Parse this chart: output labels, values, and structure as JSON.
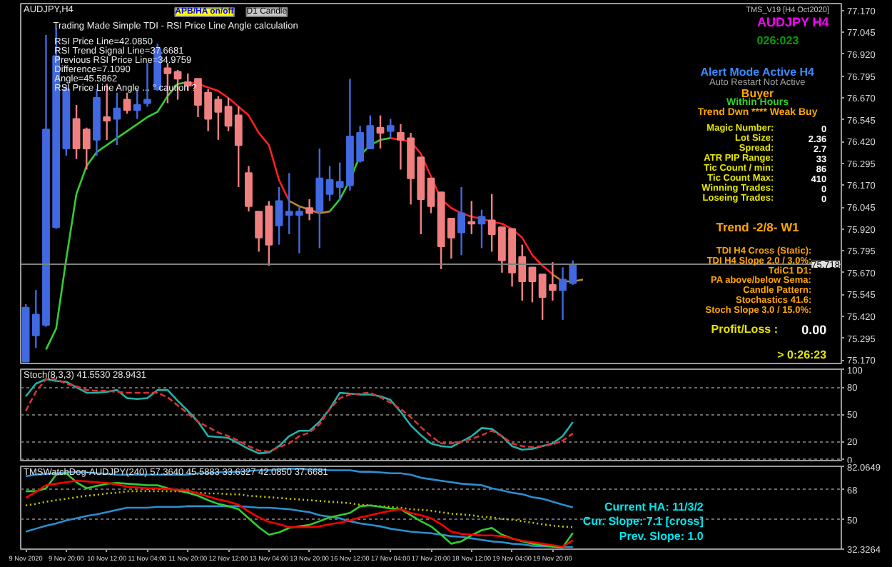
{
  "chart_data": [
    {
      "type": "candlestick",
      "title": "AUDJPY,H4",
      "categories": [
        null,
        null,
        null,
        null,
        null,
        null,
        null,
        null,
        null,
        null,
        null,
        null,
        null,
        null,
        null,
        null,
        null,
        null,
        null,
        null,
        null,
        null,
        null,
        null,
        null,
        null,
        null,
        null,
        null,
        null,
        null,
        null,
        null,
        null,
        null,
        null,
        null,
        null,
        null,
        null,
        null,
        null,
        null,
        null,
        null,
        null,
        null,
        null,
        null,
        null,
        null,
        null,
        null,
        null,
        null,
        null,
        null,
        null,
        null,
        null,
        null,
        null,
        null,
        null,
        null,
        null,
        null,
        null,
        null,
        null,
        null,
        null,
        null,
        null,
        null,
        null,
        null,
        null,
        null,
        null,
        null
      ],
      "ohlc": [
        [
          75.16,
          75.49,
          75.16,
          75.47
        ],
        [
          75.31,
          75.57,
          75.24,
          75.43
        ],
        [
          75.37,
          77.03,
          75.36,
          76.49
        ],
        [
          75.93,
          77.07,
          75.92,
          76.91
        ],
        [
          76.38,
          76.74,
          76.34,
          76.72
        ],
        [
          76.55,
          76.63,
          76.32,
          76.38
        ],
        [
          76.49,
          76.5,
          76.26,
          76.38
        ],
        [
          76.43,
          76.72,
          76.34,
          76.67
        ],
        [
          76.56,
          76.75,
          76.43,
          76.54
        ],
        [
          76.55,
          76.7,
          76.4,
          76.61
        ],
        [
          76.66,
          76.7,
          76.58,
          76.6
        ],
        [
          76.6,
          76.72,
          76.55,
          76.63
        ],
        [
          76.64,
          76.87,
          76.62,
          76.66
        ],
        [
          76.72,
          76.98,
          76.71,
          76.95
        ],
        [
          76.84,
          76.87,
          76.64,
          76.81
        ],
        [
          76.82,
          76.83,
          76.66,
          76.78
        ],
        [
          76.76,
          76.81,
          76.71,
          76.74
        ],
        [
          76.78,
          76.78,
          76.56,
          76.63
        ],
        [
          76.7,
          76.72,
          76.48,
          76.55
        ],
        [
          76.66,
          76.68,
          76.43,
          76.59
        ],
        [
          76.62,
          76.67,
          76.48,
          76.51
        ],
        [
          76.57,
          76.62,
          76.16,
          76.4
        ],
        [
          76.24,
          76.28,
          76.02,
          76.05
        ],
        [
          76.02,
          76.02,
          75.79,
          75.87
        ],
        [
          76.05,
          76.08,
          75.71,
          75.83
        ],
        [
          75.94,
          76.16,
          75.83,
          76.08
        ],
        [
          76.0,
          76.24,
          75.89,
          76.02
        ],
        [
          76.0,
          76.05,
          75.78,
          76.02
        ],
        [
          76.04,
          76.09,
          75.97,
          76.01
        ],
        [
          76.02,
          76.38,
          75.81,
          76.21
        ],
        [
          76.12,
          76.28,
          76.08,
          76.2
        ],
        [
          76.16,
          76.3,
          76.08,
          76.19
        ],
        [
          76.17,
          76.78,
          76.14,
          76.45
        ],
        [
          76.31,
          76.51,
          76.3,
          76.47
        ],
        [
          76.38,
          76.57,
          76.38,
          76.51
        ],
        [
          76.5,
          76.57,
          76.38,
          76.47
        ],
        [
          76.48,
          76.55,
          76.44,
          76.51
        ],
        [
          76.47,
          76.52,
          76.26,
          76.43
        ],
        [
          76.44,
          76.47,
          76.06,
          76.21
        ],
        [
          76.33,
          76.33,
          75.89,
          76.09
        ],
        [
          76.21,
          76.21,
          76.01,
          76.05
        ],
        [
          76.13,
          76.13,
          75.69,
          75.82
        ],
        [
          75.98,
          75.98,
          75.75,
          75.87
        ],
        [
          75.9,
          76.16,
          75.77,
          76.01
        ],
        [
          75.96,
          76.08,
          75.89,
          75.95
        ],
        [
          75.95,
          76.03,
          75.81,
          75.99
        ],
        [
          75.97,
          76.12,
          75.79,
          75.89
        ],
        [
          75.93,
          75.93,
          75.67,
          75.74
        ],
        [
          75.92,
          75.92,
          75.59,
          75.67
        ],
        [
          75.76,
          75.83,
          75.51,
          75.62
        ],
        [
          75.7,
          75.7,
          75.5,
          75.62
        ],
        [
          75.66,
          75.66,
          75.4,
          75.53
        ],
        [
          75.6,
          75.73,
          75.51,
          75.57
        ],
        [
          75.57,
          75.7,
          75.4,
          75.63
        ],
        [
          75.61,
          75.74,
          75.6,
          75.718
        ],
        null,
        null,
        null,
        null,
        null,
        null,
        null,
        null,
        null,
        null,
        null,
        null,
        null,
        null,
        null,
        null,
        null,
        null,
        null,
        null,
        null,
        null,
        null,
        null,
        null,
        null
      ],
      "colors": [
        "#4169e1",
        "#4169e1",
        "#4169e1",
        "#4169e1",
        "#4169e1",
        "#f08080",
        "#f08080",
        "#4169e1",
        "#f08080",
        "#4169e1",
        "#f08080",
        "#4169e1",
        "#4169e1",
        "#4169e1",
        "#f08080",
        "#f08080",
        "#f08080",
        "#f08080",
        "#f08080",
        "#f08080",
        "#f08080",
        "#f08080",
        "#f08080",
        "#f08080",
        "#f08080",
        "#4169e1",
        "#4169e1",
        "#4169e1",
        "#f08080",
        "#4169e1",
        "#4169e1",
        "#4169e1",
        "#4169e1",
        "#4169e1",
        "#4169e1",
        "#f08080",
        "#4169e1",
        "#f08080",
        "#f08080",
        "#f08080",
        "#f08080",
        "#f08080",
        "#f08080",
        "#4169e1",
        "#f08080",
        "#4169e1",
        "#f08080",
        "#f08080",
        "#f08080",
        "#f08080",
        "#f08080",
        "#f08080",
        "#f08080",
        "#4169e1",
        "#4169e1",
        null,
        null,
        null,
        null,
        null,
        null,
        null,
        null,
        null,
        null,
        null,
        null,
        null,
        null,
        null,
        null,
        null,
        null,
        null,
        null,
        null,
        null,
        null,
        null,
        null,
        null
      ],
      "series": [
        {
          "type": "line",
          "color": "#32cd32",
          "values": [
            null,
            null,
            75.23,
            75.35,
            75.75,
            76.12,
            76.28,
            76.36,
            76.4,
            76.44,
            76.48,
            76.52,
            76.56,
            76.59,
            76.68,
            76.75,
            76.76,
            null,
            null,
            null,
            null,
            null,
            null,
            null,
            null,
            null,
            null,
            null,
            null,
            null,
            76.02,
            76.09,
            76.2,
            76.34,
            76.4,
            76.43,
            76.44,
            null,
            null,
            null,
            null,
            null,
            null,
            null,
            null,
            null,
            null,
            null,
            null,
            null,
            null,
            null,
            null,
            null,
            null,
            null,
            null,
            null,
            null,
            null,
            null,
            null,
            null,
            null,
            null,
            null,
            null,
            null,
            null,
            null,
            null,
            null,
            null,
            null,
            null,
            null,
            null,
            null,
            null,
            null,
            null
          ]
        },
        {
          "type": "line",
          "color": "#ff2020",
          "values": [
            null,
            null,
            null,
            null,
            null,
            null,
            null,
            null,
            null,
            null,
            null,
            null,
            null,
            null,
            null,
            null,
            76.76,
            76.75,
            76.73,
            76.71,
            76.67,
            76.62,
            76.57,
            76.47,
            76.4,
            76.2,
            76.08,
            null,
            null,
            null,
            null,
            null,
            null,
            null,
            null,
            null,
            76.44,
            76.43,
            76.42,
            76.35,
            76.22,
            76.09,
            76.04,
            76.01,
            75.99,
            75.98,
            75.96,
            75.95,
            75.92,
            75.87,
            75.77,
            75.71,
            75.66,
            null,
            null,
            null,
            null,
            null,
            null,
            null,
            null,
            null,
            null,
            null,
            null,
            null,
            null,
            null,
            null,
            null,
            null,
            null,
            null,
            null,
            null,
            null,
            null,
            null,
            null,
            null,
            null
          ]
        },
        {
          "type": "line",
          "color": "#c8861e",
          "values": [
            null,
            null,
            null,
            null,
            null,
            null,
            null,
            null,
            null,
            null,
            null,
            null,
            null,
            null,
            null,
            null,
            null,
            null,
            null,
            null,
            null,
            null,
            null,
            null,
            null,
            null,
            76.08,
            76.05,
            76.03,
            76.01,
            76.02,
            null,
            null,
            null,
            null,
            null,
            null,
            null,
            null,
            null,
            null,
            null,
            null,
            null,
            null,
            null,
            null,
            null,
            null,
            null,
            null,
            null,
            75.66,
            75.62,
            75.62,
            75.63,
            null,
            null,
            null,
            null,
            null,
            null,
            null,
            null,
            null,
            null,
            null,
            null,
            null,
            null,
            null,
            null,
            null,
            null,
            null,
            null,
            null,
            null,
            null,
            null,
            null
          ]
        }
      ],
      "ylim": [
        75.15,
        77.21
      ],
      "yticks": [
        {
          "value": 77.17,
          "label": "77.170"
        },
        {
          "value": 77.045,
          "label": "77.045"
        },
        {
          "value": 76.92,
          "label": "76.920"
        },
        {
          "value": 76.795,
          "label": "76.795"
        },
        {
          "value": 76.67,
          "label": "76.670"
        },
        {
          "value": 76.545,
          "label": "76.545"
        },
        {
          "value": 76.42,
          "label": "76.420"
        },
        {
          "value": 76.295,
          "label": "76.295"
        },
        {
          "value": 76.17,
          "label": "76.170"
        },
        {
          "value": 76.045,
          "label": "76.045"
        },
        {
          "value": 75.92,
          "label": "75.920"
        },
        {
          "value": 75.795,
          "label": "75.795"
        },
        {
          "value": 75.67,
          "label": "75.670"
        },
        {
          "value": 75.545,
          "label": "75.545"
        },
        {
          "value": 75.42,
          "label": "75.420"
        },
        {
          "value": 75.295,
          "label": "75.295"
        },
        {
          "value": 75.17,
          "label": "75.170"
        }
      ],
      "ref_lines": [
        {
          "axis": "y",
          "value": 75.718,
          "label": "75.718",
          "color": "#808080"
        }
      ],
      "annotations": [
        "Trading Made Simple TDI - RSI Price Line Angle calculation",
        "RSI Price Line=42.0850",
        "RSI Trend Signal Line=37.6681",
        "Previous RSI Price Line=34.9759",
        "Difference=7.1090",
        "Angle=45.5862",
        "RSI Price Line Angle ... ° caution ?",
        "APB/HA on/off",
        "D1 Candle"
      ],
      "tick_labels": "y"
    },
    {
      "type": "line",
      "title": "Stoch(8,3,3) 41.5530 28.9431",
      "categories": [
        null,
        null,
        null,
        null,
        null,
        null,
        null,
        null,
        null,
        null,
        null,
        null,
        null,
        null,
        null,
        null,
        null,
        null,
        null,
        null,
        null,
        null,
        null,
        null,
        null,
        null,
        null,
        null,
        null,
        null,
        null,
        null,
        null,
        null,
        null,
        null,
        null,
        null,
        null,
        null,
        null,
        null,
        null,
        null,
        null,
        null,
        null,
        null,
        null,
        null,
        null,
        null,
        null,
        null,
        null,
        null,
        null,
        null,
        null,
        null,
        null,
        null,
        null,
        null,
        null,
        null,
        null,
        null,
        null,
        null,
        null,
        null,
        null,
        null,
        null,
        null,
        null,
        null,
        null,
        null,
        null
      ],
      "series": [
        {
          "color": "#20b2aa",
          "line_style": "solid",
          "values": [
            70,
            84,
            89,
            87,
            86,
            80,
            74,
            74,
            75,
            77,
            68,
            67,
            68,
            77,
            77,
            65,
            54,
            42,
            26,
            25,
            24,
            18,
            12,
            7,
            8,
            15,
            26,
            32,
            32,
            42,
            56,
            74,
            73,
            72,
            72,
            70,
            66,
            53,
            38,
            27,
            18,
            15,
            14,
            20,
            26,
            35,
            34,
            26,
            15,
            11,
            12,
            15,
            18,
            26,
            41.55,
            null,
            null,
            null,
            null,
            null,
            null,
            null,
            null,
            null,
            null,
            null,
            null,
            null,
            null,
            null,
            null,
            null,
            null,
            null,
            null,
            null,
            null,
            null,
            null,
            null,
            null
          ]
        },
        {
          "color": "#e03030",
          "line_style": "dashed",
          "values": [
            54,
            75,
            89,
            89,
            84,
            81,
            77,
            76,
            76,
            75,
            74,
            74,
            74,
            74,
            69,
            60,
            51,
            42,
            36,
            30,
            26,
            21,
            15,
            10,
            9,
            14,
            18,
            26,
            30,
            39,
            56,
            68,
            72,
            73,
            74,
            69,
            63,
            56,
            47,
            36,
            26,
            18,
            18,
            20,
            23,
            27,
            32,
            26,
            18,
            15,
            14,
            15,
            17,
            21,
            28.94,
            null,
            null,
            null,
            null,
            null,
            null,
            null,
            null,
            null,
            null,
            null,
            null,
            null,
            null,
            null,
            null,
            null,
            null,
            null,
            null,
            null,
            null,
            null,
            null,
            null,
            null
          ]
        }
      ],
      "ylim": [
        -1,
        100
      ],
      "yticks": [
        100,
        80,
        50,
        20,
        0
      ],
      "grid": "y",
      "tick_labels": "y"
    },
    {
      "type": "line",
      "title": "TMSWatchDog-AUDJPY(240) 57.3640 45.5883 33.6327 42.0850 37.6681",
      "categories": [
        "9 Nov 2020",
        null,
        null,
        null,
        "9 Nov 20:00",
        null,
        null,
        null,
        "10 Nov 12:00",
        null,
        null,
        null,
        "11 Nov 04:00",
        null,
        null,
        null,
        "11 Nov 20:00",
        null,
        null,
        null,
        "12 Nov 12:00",
        null,
        null,
        null,
        "13 Nov 04:00",
        null,
        null,
        null,
        "13 Nov 20:00",
        null,
        null,
        null,
        "16 Nov 12:00",
        null,
        null,
        null,
        "17 Nov 04:00",
        null,
        null,
        null,
        "17 Nov 20:00",
        null,
        null,
        null,
        "18 Nov 12:00",
        null,
        null,
        null,
        "19 Nov 04:00",
        null,
        null,
        null,
        "19 Nov 20:00",
        null,
        null,
        null,
        null,
        null,
        null,
        null,
        null,
        null,
        null,
        null,
        null,
        null,
        null,
        null,
        null,
        null,
        null,
        null,
        null,
        null,
        null,
        null,
        null,
        null,
        null,
        null,
        null
      ],
      "series": [
        {
          "color": "#2a8fd0",
          "line_style": "solid",
          "values": [
            76.1,
            77,
            77.5,
            77.9,
            78.4,
            78.8,
            78.4,
            77.9,
            77.5,
            77,
            77,
            77,
            77,
            77,
            77,
            77,
            77,
            77.9,
            77.9,
            78.4,
            78.8,
            78.8,
            79.3,
            79.7,
            79.7,
            80.2,
            80.6,
            80.6,
            80.2,
            80.2,
            79.7,
            79.7,
            79.7,
            78.8,
            78.8,
            78.4,
            77.9,
            77.9,
            77,
            75.2,
            74.3,
            73.4,
            72.5,
            71.6,
            71.2,
            70.7,
            68.9,
            67.6,
            66.2,
            65.3,
            63.5,
            62.6,
            60.8,
            59,
            57.364,
            null,
            null,
            null,
            null,
            null,
            null,
            null,
            null,
            null,
            null,
            null,
            null,
            null,
            null,
            null,
            null,
            null,
            null,
            null,
            null,
            null,
            null,
            null,
            null,
            null,
            null
          ]
        },
        {
          "color": "#c8c800",
          "line_style": "dotted",
          "values": [
            58.6,
            59.5,
            60.8,
            61.7,
            62.6,
            63.5,
            64.4,
            64.9,
            65.8,
            66.2,
            67.1,
            67.1,
            67.1,
            67.1,
            67.1,
            67.1,
            66.7,
            66.2,
            65.8,
            65.8,
            65.3,
            65.3,
            64.4,
            64,
            63.5,
            63.1,
            62.6,
            62.2,
            61.7,
            61.3,
            60.8,
            60.4,
            59.9,
            59,
            58.6,
            58.1,
            57.7,
            57.2,
            56.3,
            55.9,
            55.4,
            54.5,
            53.6,
            53.2,
            52.7,
            51.8,
            51.4,
            50.5,
            50,
            49.1,
            48.2,
            47.3,
            46.4,
            45.9,
            45.5883,
            null,
            null,
            null,
            null,
            null,
            null,
            null,
            null,
            null,
            null,
            null,
            null,
            null,
            null,
            null,
            null,
            null,
            null,
            null,
            null,
            null,
            null,
            null,
            null,
            null,
            null
          ]
        },
        {
          "color": "#2a8fd0",
          "line_style": "solid",
          "values": [
            42.8,
            44.6,
            46.4,
            47.8,
            49.6,
            50.9,
            52.3,
            53.2,
            54.5,
            55.9,
            57.2,
            57.2,
            57.2,
            57.7,
            57.7,
            57.7,
            58.1,
            58.1,
            58.1,
            58.1,
            58.1,
            58.1,
            57.7,
            57.2,
            57.2,
            56.8,
            56.3,
            55.4,
            54.5,
            52.7,
            51.8,
            50.9,
            49.1,
            47.8,
            46.9,
            46,
            44.6,
            43.7,
            42.8,
            42.3,
            41.9,
            41,
            40.1,
            39.7,
            38.8,
            37.9,
            37,
            36.5,
            35.6,
            35.2,
            34.3,
            34.1,
            33.9,
            33.7,
            33.6327,
            null,
            null,
            null,
            null,
            null,
            null,
            null,
            null,
            null,
            null,
            null,
            null,
            null,
            null,
            null,
            null,
            null,
            null,
            null,
            null,
            null,
            null,
            null,
            null,
            null,
            null
          ]
        },
        {
          "color": "#32cd32",
          "line_style": "solid",
          "values": [
            67.1,
            67.1,
            68.9,
            77,
            77.9,
            72.5,
            68.9,
            70.3,
            71.6,
            72.1,
            71.6,
            71.2,
            70.7,
            70.7,
            68.9,
            67.6,
            66.2,
            64.4,
            61.7,
            59.5,
            58.1,
            56.3,
            50.9,
            45.5,
            41,
            42.4,
            45.1,
            46,
            46.9,
            49.1,
            51.4,
            52.7,
            54.1,
            58.1,
            58.6,
            57.7,
            56.8,
            56.3,
            52.7,
            49.1,
            46,
            41,
            35.6,
            37,
            40.6,
            43.7,
            45.1,
            41,
            38.8,
            37,
            35.6,
            34.7,
            33.8,
            33.4,
            42.085,
            null,
            null,
            null,
            null,
            null,
            null,
            null,
            null,
            null,
            null,
            null,
            null,
            null,
            null,
            null,
            null,
            null,
            null,
            null,
            null,
            null,
            null,
            null,
            null,
            null,
            null
          ]
        },
        {
          "color": "#ff0000",
          "line_style": "solid",
          "values": [
            63.1,
            66.7,
            70.7,
            71.6,
            72.5,
            73.4,
            73,
            72.5,
            72.1,
            71.2,
            69.8,
            69.4,
            68.9,
            68.9,
            68.5,
            68,
            67.6,
            65.8,
            64,
            62.2,
            60.8,
            59,
            55,
            51.4,
            48.7,
            47.3,
            45.5,
            45.5,
            45.5,
            46,
            47.3,
            48.2,
            49.6,
            51.4,
            52.7,
            54.1,
            55.4,
            56.3,
            54.1,
            52.7,
            50.9,
            47.3,
            42.8,
            41.5,
            41,
            40.6,
            40.6,
            40.1,
            38.8,
            37.4,
            36.5,
            35.6,
            34.7,
            33.8,
            37.6681,
            null,
            null,
            null,
            null,
            null,
            null,
            null,
            null,
            null,
            null,
            null,
            null,
            null,
            null,
            null,
            null,
            null,
            null,
            null,
            null,
            null,
            null,
            null,
            null,
            null,
            null
          ]
        }
      ],
      "ylim": [
        32.3264,
        82.0649
      ],
      "yticks": [
        {
          "value": 82.0649,
          "label": "82.0649"
        },
        68,
        50,
        {
          "value": 32.3264,
          "label": "32.3264"
        }
      ],
      "grid": "y",
      "annotations": [
        "Current HA: 11/3/2",
        "Cur. Slope: 7.1 [cross]",
        "Prev. Slope: 1.0"
      ]
    },
    {
      "type": "other",
      "annotations": [
        "TMS_V19 [H4 Oct2020]",
        "AUDJPY H4",
        "026:023",
        "Alert Mode Active H4",
        "Auto Restart Not Active",
        "Buyer",
        "Within Hours",
        "Trend Dwn **** Weak Buy",
        "Magic Number:",
        "0",
        "Lot Size:",
        "2.36",
        "Spread:",
        "2.7",
        "ATR PIP Range:",
        "33",
        "Tic Count / min:",
        "86",
        "Tic Count Max:",
        "410",
        "Winning Trades:",
        "0",
        "Loseing Trades:",
        "0",
        "Trend -2/8- W1",
        "TDI H4 Cross (Static):",
        "TDI H4 Slope 2.0 / 3.0%:",
        "TdiC1 D1:",
        "PA above/below Sema:",
        "Candle Pattern:",
        "Stochastics 41.6:",
        "Stoch Slope 3.0 / 15.0%:",
        "Profit/Loss :",
        "0.00",
        "> 0:26:23"
      ],
      "colors": [
        "#c0c0c0",
        "#ff00ff",
        "#00a000",
        "#3c8cff",
        "#a0a0a0",
        "#ffa500",
        "#32cd32",
        "#ffa500",
        "#e6e600",
        "#ffffff",
        "#e6e600",
        "#ffffff",
        "#e6e600",
        "#ffffff",
        "#e6e600",
        "#ffffff",
        "#e6e600",
        "#ffffff",
        "#e6e600",
        "#ffffff",
        "#e6e600",
        "#ffffff",
        "#e6e600",
        "#ffffff",
        "#ffa500",
        "#ffa500",
        "#ffa500",
        "#ffa500",
        "#ffa500",
        "#ffa500",
        "#ffa500",
        "#ffa500",
        "#e6e600",
        "#ffffff",
        "#e6e600"
      ]
    }
  ]
}
